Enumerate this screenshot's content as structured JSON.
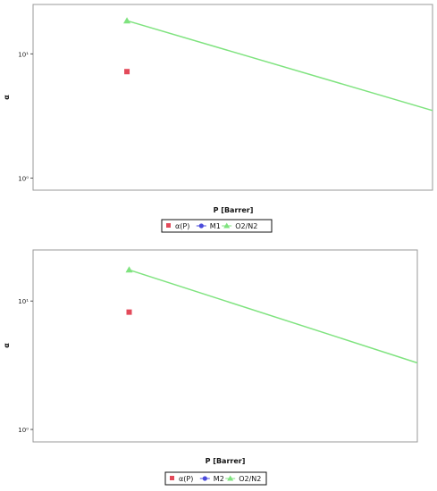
{
  "chart_data": [
    {
      "type": "scatter",
      "xlabel": "P [Barrer]",
      "ylabel": "α",
      "yscale": "log",
      "ylim": [
        0.8,
        25
      ],
      "xlim": [
        0,
        1
      ],
      "yticks": [
        {
          "value": 1,
          "label": "10⁰"
        },
        {
          "value": 10,
          "label": "10¹"
        }
      ],
      "grid": false,
      "legend_placement": "bottom-center",
      "series": [
        {
          "name": "α(P)",
          "kind": "marker",
          "marker": "square",
          "color": "#e34a5a",
          "points": [
            {
              "x": 0.235,
              "y": 7.2
            }
          ]
        },
        {
          "name": "M1",
          "kind": "marker",
          "marker": "circle",
          "color": "#4a4adb",
          "points": [
            {
              "x": 0.235,
              "y": 7.2
            }
          ]
        },
        {
          "name": "O2/N2",
          "kind": "line",
          "marker": "triangle",
          "color": "#7fe37f",
          "points": [
            {
              "x": 0.235,
              "y": 18.5
            },
            {
              "x": 1.0,
              "y": 3.5
            }
          ]
        }
      ]
    },
    {
      "type": "scatter",
      "xlabel": "P [Barrer]",
      "ylabel": "α",
      "yscale": "log",
      "ylim": [
        0.8,
        25
      ],
      "xlim": [
        0,
        1
      ],
      "yticks": [
        {
          "value": 1,
          "label": "10⁰"
        },
        {
          "value": 10,
          "label": "10¹"
        }
      ],
      "grid": false,
      "legend_placement": "bottom-center",
      "series": [
        {
          "name": "α(P)",
          "kind": "marker",
          "marker": "square",
          "color": "#e34a5a",
          "points": [
            {
              "x": 0.25,
              "y": 8.2
            }
          ]
        },
        {
          "name": "M2",
          "kind": "marker",
          "marker": "circle",
          "color": "#4a4adb",
          "points": [
            {
              "x": 0.25,
              "y": 8.2
            }
          ]
        },
        {
          "name": "O2/N2",
          "kind": "line",
          "marker": "triangle",
          "color": "#7fe37f",
          "points": [
            {
              "x": 0.25,
              "y": 17.5
            },
            {
              "x": 1.0,
              "y": 3.3
            }
          ]
        }
      ]
    }
  ]
}
